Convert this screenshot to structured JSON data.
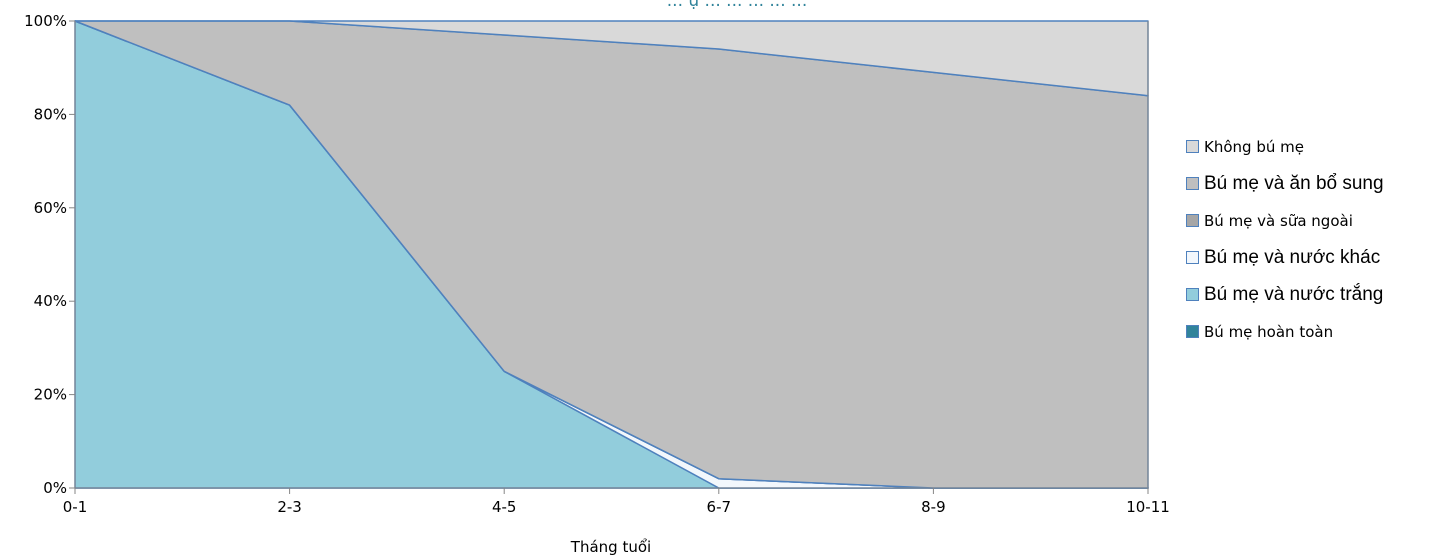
{
  "chart_data": {
    "type": "area",
    "stacked": "percent",
    "title": "...",
    "title_visible_fragment": "... ụ  ...    ...     ...   ...   ...",
    "xlabel": "Tháng tuổi",
    "ylabel": "",
    "categories": [
      "0-1",
      "2-3",
      "4-5",
      "6-7",
      "8-9",
      "10-11"
    ],
    "ytick_labels": [
      "0%",
      "20%",
      "40%",
      "60%",
      "80%",
      "100%"
    ],
    "ytick_values": [
      0,
      20,
      40,
      60,
      80,
      100
    ],
    "ylim": [
      0,
      100
    ],
    "grid": false,
    "legend_position": "right",
    "series": [
      {
        "name": "Bú mẹ hoàn toàn",
        "values": [
          0,
          0,
          0,
          0,
          0,
          0
        ],
        "color": "#31849b"
      },
      {
        "name": "Bú mẹ và nước trắng",
        "values": [
          100,
          82,
          25,
          0,
          0,
          0
        ],
        "color": "#92cddc"
      },
      {
        "name": "Bú mẹ và nước khác",
        "values": [
          0,
          0,
          0,
          2,
          0,
          0
        ],
        "color": "#f2f7fc"
      },
      {
        "name": "Bú mẹ và sữa ngoài",
        "values": [
          0,
          0,
          0,
          0,
          0,
          0
        ],
        "color": "#a6a6a6"
      },
      {
        "name": "Bú mẹ và ăn bổ sung",
        "values": [
          0,
          18,
          72,
          92,
          89,
          84
        ],
        "color": "#bfbfbf"
      },
      {
        "name": "Không bú mẹ",
        "values": [
          0,
          0,
          3,
          6,
          11,
          16
        ],
        "color": "#d9d9d9"
      }
    ],
    "line_color": "#4f81bd",
    "legend_order": [
      "Không bú mẹ",
      "Bú mẹ và ăn bổ sung",
      "Bú mẹ và sữa ngoài",
      "Bú mẹ và nước khác",
      "Bú mẹ và nước trắng",
      "Bú mẹ hoàn toàn"
    ],
    "legend_font_sizes": [
      "sm",
      "lg",
      "sm",
      "lg",
      "lg",
      "sm"
    ]
  }
}
